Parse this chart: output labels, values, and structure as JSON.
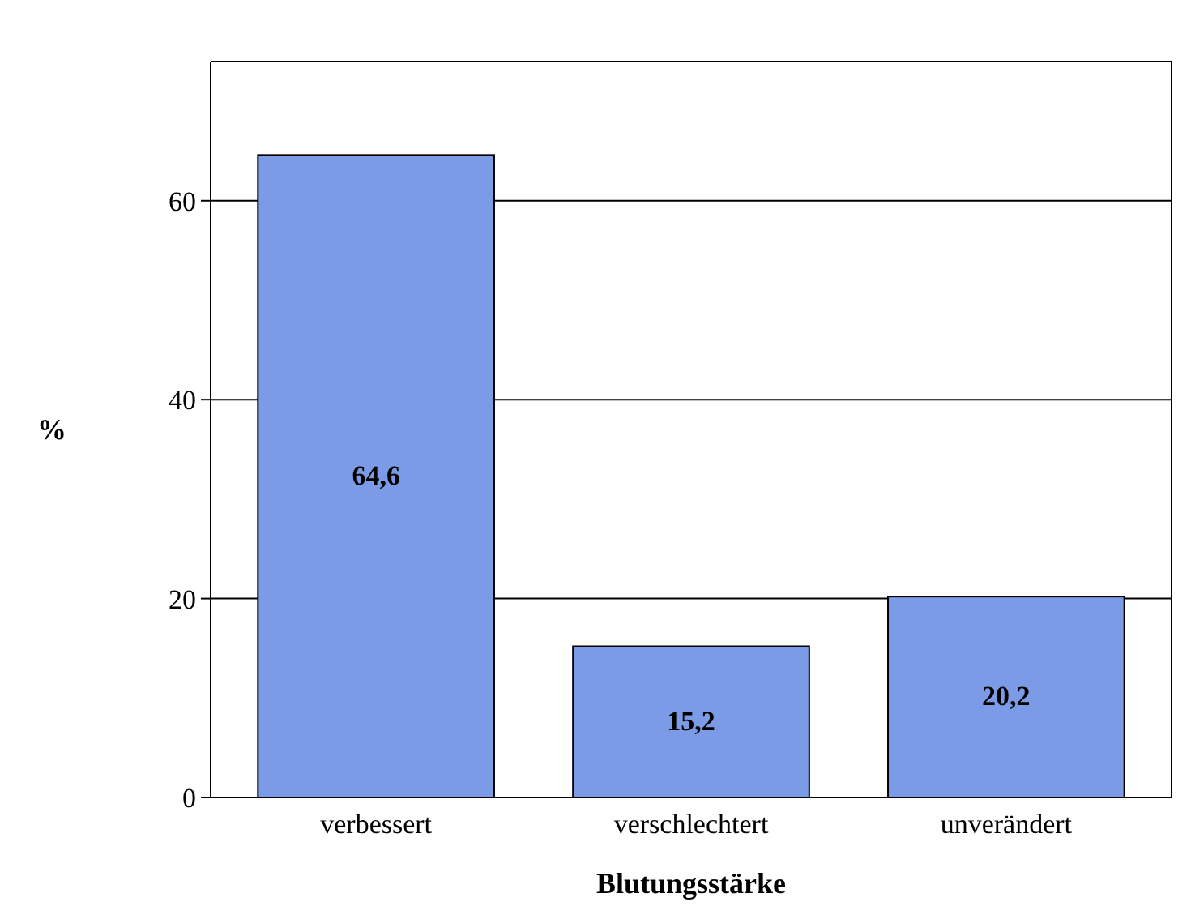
{
  "chart_data": {
    "type": "bar",
    "xlabel": "Blutungsstärke",
    "ylabel": "%",
    "categories": [
      "verbessert",
      "verschlechtert",
      "unverändert"
    ],
    "values": [
      64.6,
      15.2,
      20.2
    ],
    "value_labels": [
      "64,6",
      "15,2",
      "20,2"
    ],
    "color": "#7b9be6",
    "ylim": [
      0,
      74
    ],
    "yticks": [
      0,
      20,
      40,
      60
    ],
    "grid": "y"
  }
}
